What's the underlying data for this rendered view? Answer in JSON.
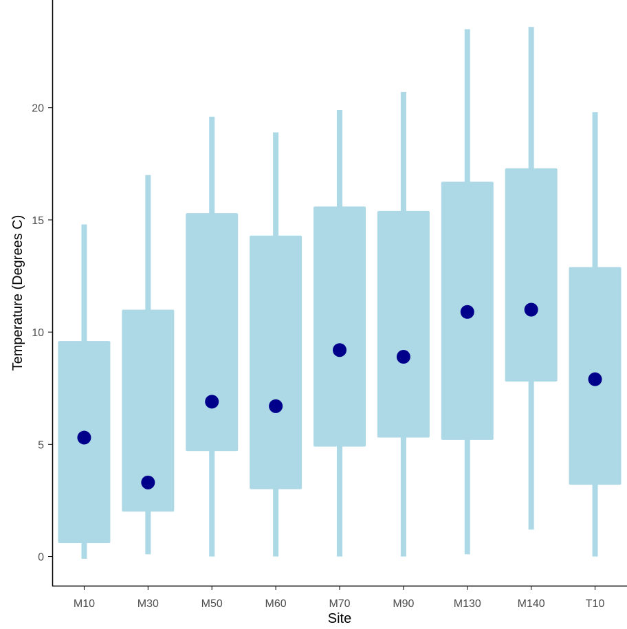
{
  "chart_data": {
    "type": "box",
    "title": "",
    "xlabel": "Site",
    "ylabel": "Temperature (Degrees C)",
    "categories": [
      "M10",
      "M30",
      "M50",
      "M60",
      "M70",
      "M90",
      "M130",
      "M140",
      "T10"
    ],
    "series": [
      {
        "min": [
          -0.1,
          0.1,
          0.0,
          0.0,
          0.0,
          0.0,
          0.1,
          1.2,
          0.0
        ],
        "q1": [
          0.6,
          2.0,
          4.7,
          3.0,
          4.9,
          5.3,
          5.2,
          7.8,
          3.2
        ],
        "q3": [
          9.6,
          11.0,
          15.3,
          14.3,
          15.6,
          15.4,
          16.7,
          17.3,
          12.9
        ],
        "max": [
          14.8,
          17.0,
          19.6,
          18.9,
          19.9,
          20.7,
          23.5,
          23.6,
          19.8
        ],
        "center": [
          5.3,
          3.3,
          6.9,
          6.7,
          9.2,
          8.9,
          10.9,
          11.0,
          7.9
        ]
      }
    ],
    "yticks": [
      0,
      5,
      10,
      15,
      20
    ],
    "ylim": [
      -1.3,
      24.8
    ],
    "grid": false,
    "legend": "none",
    "colors": {
      "box": "#ADD8E6",
      "point": "#00008B",
      "axis": "#000000",
      "tick_text": "#4d4d4d"
    }
  }
}
